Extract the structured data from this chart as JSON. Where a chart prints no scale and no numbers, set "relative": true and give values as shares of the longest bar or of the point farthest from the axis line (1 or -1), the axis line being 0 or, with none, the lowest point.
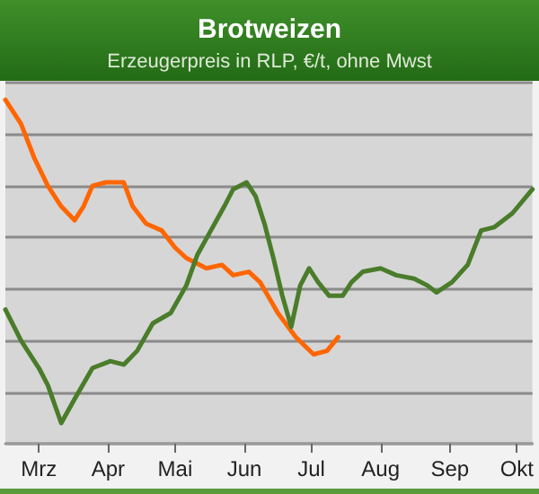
{
  "chart_data": {
    "type": "line",
    "title": "Brotweizen",
    "subtitle": "Erzeugerpreis in RLP, €/t, ohne Mwst",
    "relative": true,
    "xlim": [
      "--02-15",
      "--10-08"
    ],
    "xticks": [
      {
        "value": "--03-01",
        "label": "Mrz"
      },
      {
        "value": "--04-01",
        "label": "Apr"
      },
      {
        "value": "--05-01",
        "label": "Mai"
      },
      {
        "value": "--06-01",
        "label": "Jun"
      },
      {
        "value": "--07-01",
        "label": "Jul"
      },
      {
        "value": "--08-01",
        "label": "Aug"
      },
      {
        "value": "--09-01",
        "label": "Sep"
      },
      {
        "value": "--10-01",
        "label": "Okt"
      }
    ],
    "grid": "y",
    "marker": "none",
    "line_style": "solid",
    "series": [
      {
        "color": "#ff6600",
        "x": [
          "--02-15",
          "--02-22",
          "--02-28",
          "--03-05",
          "--03-11",
          "--03-17",
          "--03-21",
          "--03-25",
          "--03-31",
          "--04-08",
          "--04-12",
          "--04-18",
          "--04-25",
          "--05-01",
          "--05-06",
          "--05-15",
          "--05-22",
          "--05-27",
          "--06-03",
          "--06-08",
          "--06-16",
          "--06-24",
          "--07-02",
          "--07-08",
          "--07-13"
        ],
        "values": [
          1.0,
          0.93,
          0.83,
          0.75,
          0.69,
          0.65,
          0.69,
          0.75,
          0.76,
          0.76,
          0.69,
          0.64,
          0.62,
          0.57,
          0.54,
          0.51,
          0.52,
          0.49,
          0.5,
          0.47,
          0.38,
          0.31,
          0.26,
          0.27,
          0.31
        ]
      },
      {
        "color": "#4a7c2a",
        "x": [
          "--02-15",
          "--02-22",
          "--03-01",
          "--03-05",
          "--03-11",
          "--03-17",
          "--03-25",
          "--04-02",
          "--04-08",
          "--04-14",
          "--04-21",
          "--04-29",
          "--05-06",
          "--05-11",
          "--05-17",
          "--05-23",
          "--05-27",
          "--06-02",
          "--06-06",
          "--06-10",
          "--06-14",
          "--06-18",
          "--06-22",
          "--06-26",
          "--06-30",
          "--07-04",
          "--07-09",
          "--07-15",
          "--07-19",
          "--07-24",
          "--08-01",
          "--08-08",
          "--08-16",
          "--08-22",
          "--08-26",
          "--09-02",
          "--09-09",
          "--09-15",
          "--09-21",
          "--09-29",
          "--10-08"
        ],
        "values": [
          0.39,
          0.3,
          0.22,
          0.17,
          0.06,
          0.13,
          0.22,
          0.24,
          0.23,
          0.27,
          0.35,
          0.38,
          0.46,
          0.55,
          0.62,
          0.69,
          0.74,
          0.76,
          0.72,
          0.64,
          0.54,
          0.43,
          0.34,
          0.46,
          0.51,
          0.47,
          0.43,
          0.43,
          0.47,
          0.5,
          0.51,
          0.49,
          0.48,
          0.46,
          0.44,
          0.47,
          0.52,
          0.62,
          0.63,
          0.67,
          0.74
        ]
      }
    ]
  }
}
